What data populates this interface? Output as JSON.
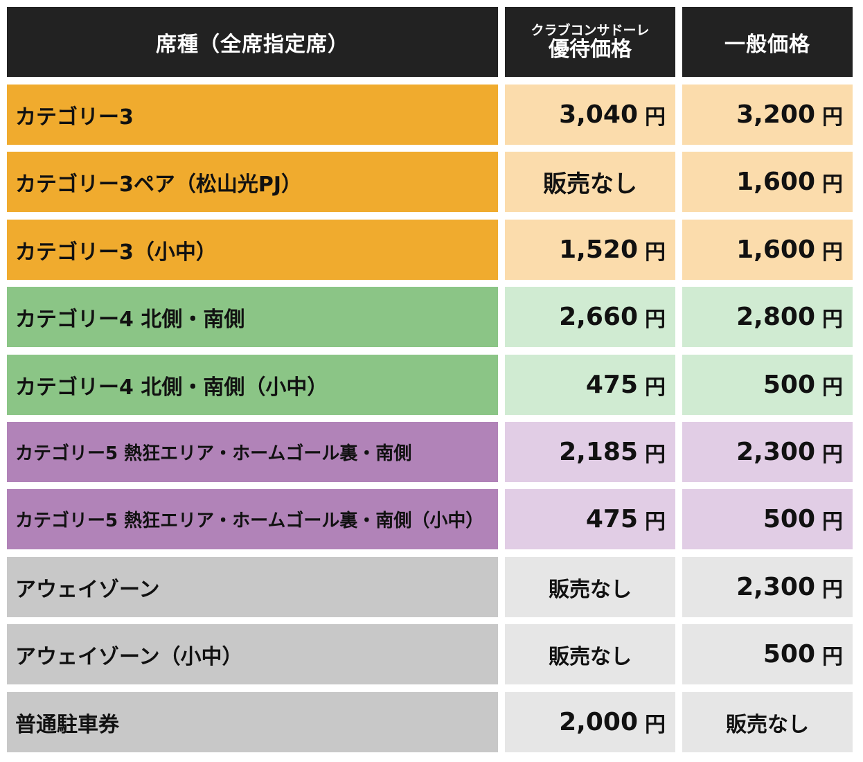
{
  "header": {
    "seat_type": "席種（全席指定席）",
    "member_price_line1": "クラブコンサドーレ",
    "member_price_line2": "優待価格",
    "general_price": "一般価格"
  },
  "currency_unit": "円",
  "colors": {
    "header_bg": "#222222",
    "orange_dark": "#f0ab2e",
    "orange_light": "#fbdcac",
    "green_dark": "#8bc586",
    "green_light": "#d0ebd2",
    "purple_dark": "#b183b8",
    "purple_light": "#e1cde5",
    "gray_dark": "#c8c8c8",
    "gray_light": "#e6e6e6"
  },
  "rows": [
    {
      "seat": "カテゴリー3",
      "member": "3,040",
      "general": "3,200"
    },
    {
      "seat": "カテゴリー3ペア（松山光PJ）",
      "member": "販売なし",
      "general": "1,600"
    },
    {
      "seat": "カテゴリー3（小中）",
      "member": "1,520",
      "general": "1,600"
    },
    {
      "seat": "カテゴリー4 北側・南側",
      "member": "2,660",
      "general": "2,800"
    },
    {
      "seat": "カテゴリー4 北側・南側（小中）",
      "member": "475",
      "general": "500"
    },
    {
      "seat": "カテゴリー5 熱狂エリア・ホームゴール裏・南側",
      "member": "2,185",
      "general": "2,300"
    },
    {
      "seat": "カテゴリー5 熱狂エリア・ホームゴール裏・南側（小中）",
      "member": "475",
      "general": "500"
    },
    {
      "seat": "アウェイゾーン",
      "member": "販売なし",
      "general": "2,300"
    },
    {
      "seat": "アウェイゾーン（小中）",
      "member": "販売なし",
      "general": "500"
    },
    {
      "seat": "普通駐車券",
      "member": "2,000",
      "general": "販売なし"
    }
  ]
}
